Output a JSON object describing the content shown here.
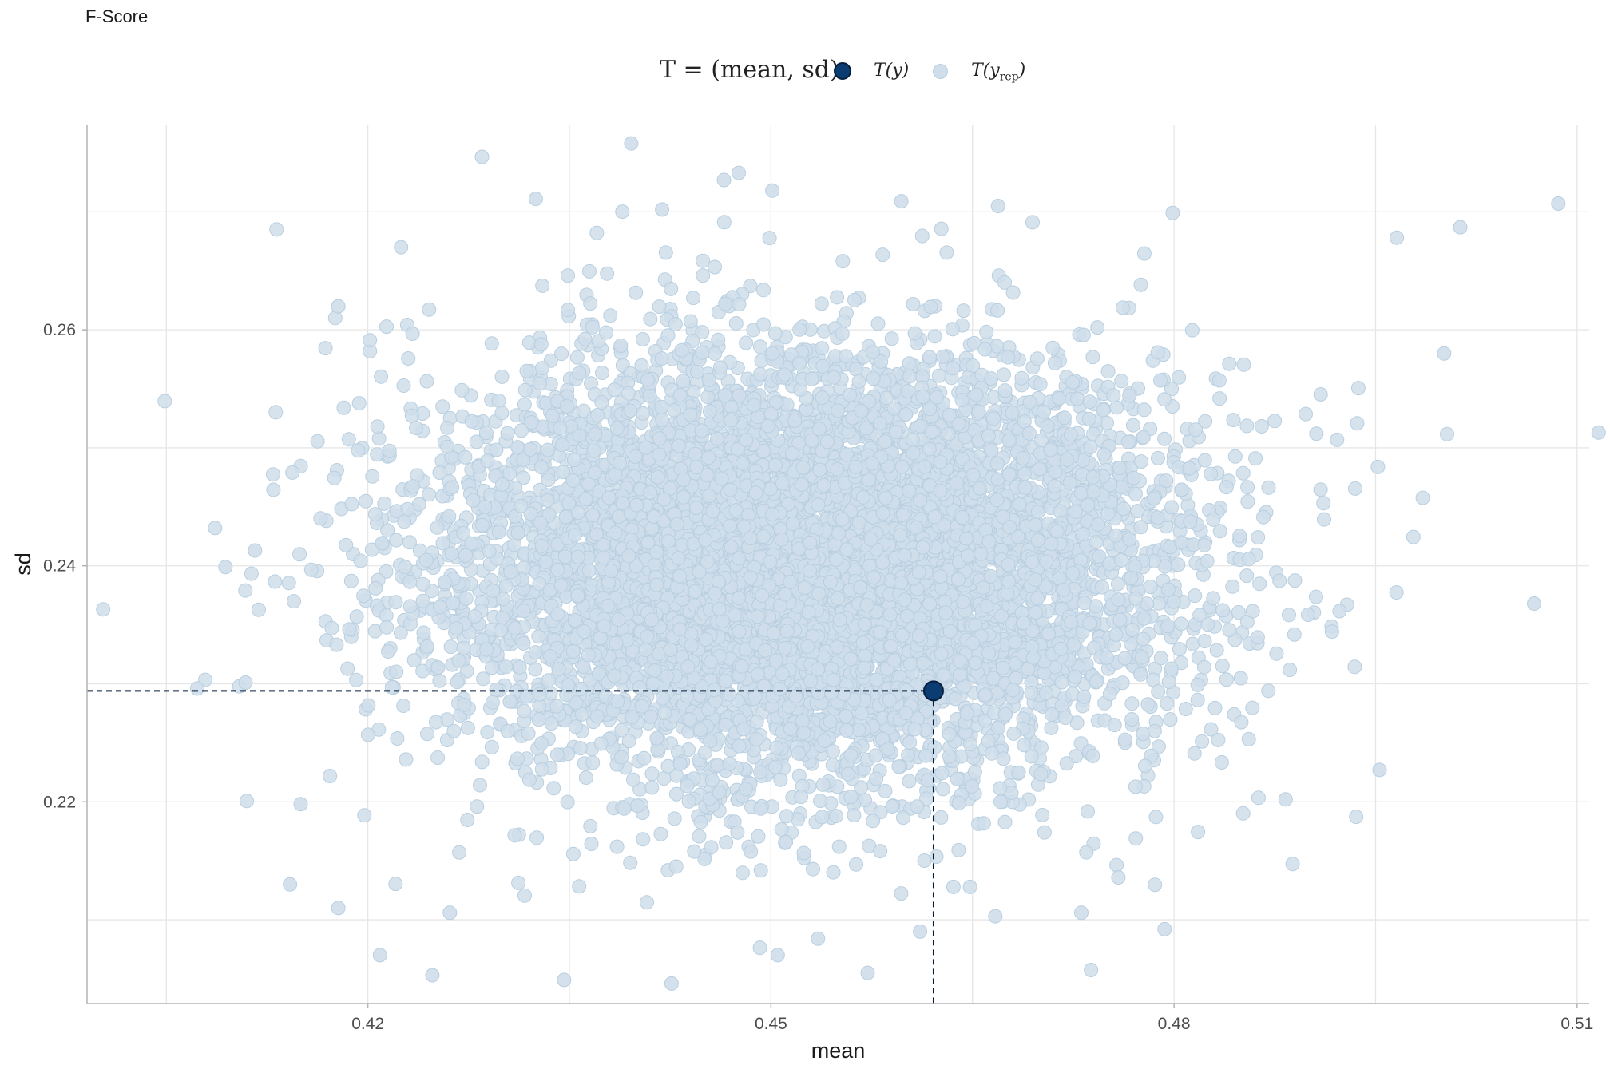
{
  "chart_data": {
    "type": "scatter",
    "title": "F-Score",
    "xlabel": "mean",
    "ylabel": "sd",
    "xlim": [
      0.3991,
      0.5109
    ],
    "ylim": [
      0.2029,
      0.2774
    ],
    "xticks": [
      0.42,
      0.45,
      0.48,
      0.51
    ],
    "xtick_labels": [
      "0.42",
      "0.45",
      "0.48",
      "0.51"
    ],
    "yticks": [
      0.22,
      0.24,
      0.26
    ],
    "ytick_labels": [
      "0.22",
      "0.24",
      "0.26"
    ],
    "grid": true,
    "legend_position": "top",
    "legend": {
      "stat_label_prefix": "T = (mean, sd)",
      "observed_label": "T(y)",
      "replicated_label_main": "T(y",
      "replicated_label_sub": "rep",
      "replicated_label_close": ")"
    },
    "observed": {
      "name": "T(y)",
      "x": 0.4621,
      "y": 0.2294
    },
    "replicated": {
      "name": "T(yrep)",
      "n_points": 8000,
      "center": {
        "x": 0.4528,
        "y": 0.24
      },
      "spread_sd": {
        "x": 0.0134,
        "y": 0.009
      },
      "outliers": [
        [
          0.4094,
          0.2399
        ],
        [
          0.4116,
          0.2413
        ],
        [
          0.4109,
          0.2301
        ],
        [
          0.4073,
          0.2296
        ],
        [
          0.4396,
          0.2758
        ],
        [
          0.4465,
          0.2727
        ],
        [
          0.4476,
          0.2733
        ],
        [
          0.4325,
          0.2711
        ],
        [
          0.4501,
          0.2718
        ],
        [
          0.4419,
          0.2702
        ],
        [
          0.4597,
          0.2709
        ],
        [
          0.4669,
          0.2705
        ],
        [
          0.5086,
          0.2707
        ],
        [
          0.5013,
          0.2687
        ],
        [
          0.4799,
          0.2699
        ],
        [
          0.5116,
          0.2513
        ],
        [
          0.5068,
          0.2368
        ],
        [
          0.4178,
          0.262
        ],
        [
          0.4261,
          0.2106
        ],
        [
          0.4248,
          0.2053
        ],
        [
          0.4346,
          0.2049
        ],
        [
          0.4426,
          0.2046
        ],
        [
          0.4572,
          0.2055
        ],
        [
          0.4611,
          0.209
        ],
        [
          0.4178,
          0.211
        ],
        [
          0.4142,
          0.213
        ],
        [
          0.415,
          0.2198
        ],
        [
          0.4209,
          0.207
        ],
        [
          0.4883,
          0.2202
        ],
        [
          0.4953,
          0.2227
        ],
        [
          0.5001,
          0.258
        ],
        [
          0.4731,
          0.2106
        ],
        [
          0.4793,
          0.2092
        ],
        [
          0.4667,
          0.2103
        ],
        [
          0.4535,
          0.2084
        ],
        [
          0.4505,
          0.207
        ]
      ]
    },
    "colors": {
      "observed_fill": "#0b3c72",
      "observed_stroke": "#061f3c",
      "replicated_fill": "#cfdeea",
      "replicated_stroke": "#b9cfe0",
      "grid": "#e6e6e6",
      "axis": "#b3b3b3"
    }
  }
}
